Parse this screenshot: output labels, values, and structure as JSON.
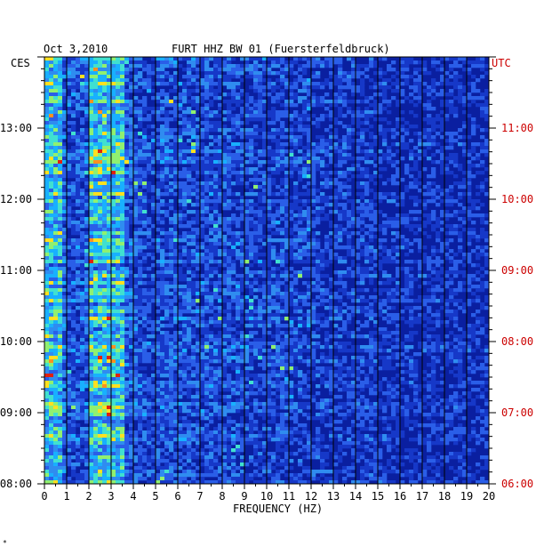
{
  "header": {
    "date": "Oct 3,2010",
    "station": "FURT HHZ BW 01 (Fuersterfeldbruck)"
  },
  "chart_data": {
    "type": "heatmap",
    "title": "FURT HHZ BW 01 (Fuersterfeldbruck)",
    "date": "Oct 3,2010",
    "xlabel": "FREQUENCY (HZ)",
    "xlim": [
      0,
      20
    ],
    "x_ticks": [
      "0",
      "1",
      "2",
      "3",
      "4",
      "5",
      "6",
      "7",
      "8",
      "9",
      "10",
      "11",
      "12",
      "13",
      "14",
      "15",
      "16",
      "17",
      "18",
      "19",
      "20"
    ],
    "left_axis": {
      "label": "CES",
      "ticks": [
        "08:00",
        "09:00",
        "10:00",
        "11:00",
        "12:00",
        "13:00"
      ]
    },
    "right_axis": {
      "label": "UTC",
      "ticks": [
        "06:00",
        "07:00",
        "08:00",
        "09:00",
        "10:00",
        "11:00"
      ]
    },
    "colors": {
      "background": "#0a1fa0",
      "low": "#1638c8",
      "mid": "#18b0ff",
      "high": "#ffe020",
      "peak": "#e02010",
      "utc_label": "#cc0000"
    },
    "dominant_band_hz": [
      2,
      3.5
    ],
    "footer_mark": "*"
  }
}
